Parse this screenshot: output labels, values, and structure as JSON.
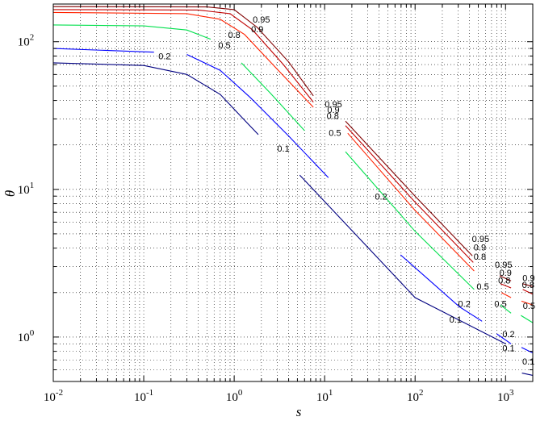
{
  "chart_data": {
    "type": "line",
    "subtype": "contour",
    "xlabel": "s",
    "ylabel": "θ",
    "xscale": "log",
    "yscale": "log",
    "xlim": [
      0.01,
      2000
    ],
    "ylim": [
      0.5,
      180
    ],
    "grid": true,
    "x_ticks": [
      {
        "value": 0.01,
        "base": "10",
        "exp": "-2"
      },
      {
        "value": 0.1,
        "base": "10",
        "exp": "-1"
      },
      {
        "value": 1,
        "base": "10",
        "exp": "0"
      },
      {
        "value": 10,
        "base": "10",
        "exp": "1"
      },
      {
        "value": 100,
        "base": "10",
        "exp": "2"
      },
      {
        "value": 1000,
        "base": "10",
        "exp": "3"
      }
    ],
    "y_ticks": [
      {
        "value": 1,
        "base": "10",
        "exp": "0"
      },
      {
        "value": 10,
        "base": "10",
        "exp": "1"
      },
      {
        "value": 100,
        "base": "10",
        "exp": "2"
      }
    ],
    "colors": {
      "0.1": "#000080",
      "0.2": "#0000ff",
      "0.5": "#00e04c",
      "0.8": "#ff2200",
      "0.9": "#c00000",
      "0.95": "#800000"
    },
    "series": [
      {
        "name": "0.1",
        "segments": [
          [
            [
              0.01,
              72
            ],
            [
              0.1,
              69
            ],
            [
              0.3,
              60
            ],
            [
              0.7,
              44
            ],
            [
              1.2,
              31
            ],
            [
              1.85,
              23.5
            ]
          ],
          [
            [
              5.3,
              12.5
            ],
            [
              100,
              1.85
            ],
            [
              1000,
              0.9
            ]
          ],
          [
            [
              1520,
              0.57
            ],
            [
              2000,
              0.55
            ]
          ]
        ]
      },
      {
        "name": "0.2",
        "segments": [
          [
            [
              0.01,
              90
            ],
            [
              0.13,
              85
            ]
          ],
          [
            [
              0.3,
              82
            ],
            [
              0.7,
              64
            ],
            [
              1.5,
              42
            ],
            [
              4,
              23
            ],
            [
              11,
              12
            ]
          ],
          [
            [
              69,
              3.6
            ],
            [
              310,
              1.6
            ],
            [
              550,
              1.28
            ]
          ],
          [
            [
              800,
              1.05
            ],
            [
              1150,
              0.9
            ]
          ],
          [
            [
              1500,
              0.85
            ],
            [
              2000,
              0.78
            ]
          ]
        ]
      },
      {
        "name": "0.5",
        "segments": [
          [
            [
              0.01,
              130
            ],
            [
              0.1,
              128
            ],
            [
              0.3,
              120
            ],
            [
              0.55,
              104
            ]
          ],
          [
            [
              1.2,
              72
            ],
            [
              2.5,
              45
            ],
            [
              6,
              25
            ]
          ],
          [
            [
              17,
              18
            ],
            [
              100,
              5.2
            ],
            [
              450,
              2.1
            ]
          ],
          [
            [
              880,
              1.65
            ],
            [
              1150,
              1.45
            ]
          ],
          [
            [
              1480,
              1.4
            ],
            [
              2000,
              1.25
            ]
          ]
        ]
      },
      {
        "name": "0.8",
        "segments": [
          [
            [
              0.01,
              158
            ],
            [
              0.3,
              155
            ],
            [
              0.7,
              142
            ],
            [
              1.3,
              112
            ],
            [
              3,
              65
            ],
            [
              7.5,
              36
            ]
          ],
          [
            [
              18,
              24
            ],
            [
              100,
              7.2
            ],
            [
              450,
              2.8
            ]
          ],
          [
            [
              900,
              2.0
            ],
            [
              1150,
              1.85
            ]
          ],
          [
            [
              1500,
              1.75
            ],
            [
              2000,
              1.65
            ]
          ]
        ]
      },
      {
        "name": "0.9",
        "segments": [
          [
            [
              0.01,
              165
            ],
            [
              0.4,
              164
            ],
            [
              0.9,
              155
            ],
            [
              1.6,
              120
            ],
            [
              3.5,
              70
            ],
            [
              7.5,
              39
            ]
          ],
          [
            [
              17,
              27
            ],
            [
              100,
              8.2
            ],
            [
              440,
              3.2
            ]
          ],
          [
            [
              880,
              2.3
            ],
            [
              1150,
              2.15
            ]
          ],
          [
            [
              1550,
              2.1
            ],
            [
              2000,
              1.95
            ]
          ]
        ]
      },
      {
        "name": "0.95",
        "segments": [
          [
            [
              0.01,
              173
            ],
            [
              0.5,
              172
            ],
            [
              1.0,
              165
            ],
            [
              1.8,
              125
            ],
            [
              4,
              73
            ],
            [
              7.5,
              43
            ]
          ],
          [
            [
              17,
              29
            ],
            [
              100,
              9.0
            ],
            [
              430,
              3.55
            ]
          ],
          [
            [
              860,
              2.6
            ],
            [
              1150,
              2.4
            ]
          ],
          [
            [
              1530,
              2.3
            ],
            [
              2000,
              2.2
            ]
          ]
        ]
      }
    ],
    "contour_labels": [
      {
        "text": "0.95",
        "x": 2.0,
        "y": 135
      },
      {
        "text": "0.9",
        "x": 1.8,
        "y": 116
      },
      {
        "text": "0.8",
        "x": 1.0,
        "y": 106
      },
      {
        "text": "0.5",
        "x": 0.78,
        "y": 90
      },
      {
        "text": "0.2",
        "x": 0.17,
        "y": 76
      },
      {
        "text": "0.1",
        "x": 3.5,
        "y": 18
      },
      {
        "text": "0.95",
        "x": 12.5,
        "y": 36
      },
      {
        "text": "0.9",
        "x": 12.5,
        "y": 33
      },
      {
        "text": "0.8",
        "x": 12.3,
        "y": 30
      },
      {
        "text": "0.5",
        "x": 13.0,
        "y": 23
      },
      {
        "text": "0.2",
        "x": 42,
        "y": 8.5
      },
      {
        "text": "0.95",
        "x": 530,
        "y": 4.4
      },
      {
        "text": "0.9",
        "x": 520,
        "y": 3.85
      },
      {
        "text": "0.8",
        "x": 520,
        "y": 3.35
      },
      {
        "text": "0.5",
        "x": 560,
        "y": 2.1
      },
      {
        "text": "0.2",
        "x": 350,
        "y": 1.6
      },
      {
        "text": "0.1",
        "x": 280,
        "y": 1.25
      },
      {
        "text": "0.95",
        "x": 950,
        "y": 2.95
      },
      {
        "text": "0.9",
        "x": 1000,
        "y": 2.6
      },
      {
        "text": "0.8",
        "x": 970,
        "y": 2.3
      },
      {
        "text": "0.5",
        "x": 880,
        "y": 1.6
      },
      {
        "text": "0.2",
        "x": 1080,
        "y": 1.0
      },
      {
        "text": "0.1",
        "x": 1080,
        "y": 0.8
      },
      {
        "text": "0.9",
        "x": 1800,
        "y": 2.4
      },
      {
        "text": "0.8",
        "x": 1780,
        "y": 2.15
      },
      {
        "text": "0.5",
        "x": 1820,
        "y": 1.55
      },
      {
        "text": "0.1",
        "x": 1790,
        "y": 0.65
      }
    ]
  }
}
